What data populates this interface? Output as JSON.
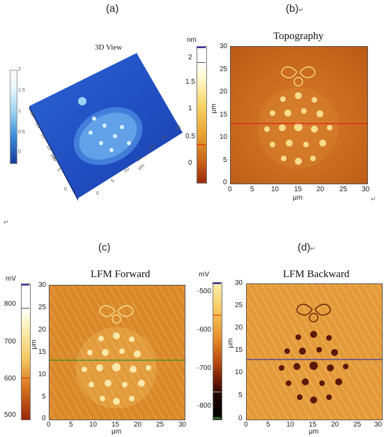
{
  "labels": {
    "a": "(a)",
    "b": "(b)",
    "c": "(c)",
    "d": "(d)"
  },
  "return_mark": "↵",
  "panel_a": {
    "title": "3D View",
    "colorbar_ticks": [
      "2",
      "1.5",
      "1",
      "0.5",
      "0"
    ],
    "axis_ticks_side": [
      "30",
      "25",
      "20",
      "15",
      "10",
      "5",
      "0"
    ],
    "axis_ticks_front": [
      "30",
      "25",
      "20",
      "15",
      "10",
      "5",
      "0"
    ],
    "unit": "μm"
  },
  "panel_b": {
    "title": "Topography",
    "colorbar_unit": "nm",
    "colorbar_ticks": [
      "2",
      "1.5",
      "1",
      "0.5",
      "0"
    ],
    "y_ticks": [
      "30",
      "25",
      "20",
      "15",
      "10",
      "5",
      "0"
    ],
    "x_ticks": [
      "0",
      "5",
      "10",
      "15",
      "20",
      "25",
      "30"
    ],
    "ylabel": "μm",
    "xlabel": "μm"
  },
  "panel_c": {
    "title": "LFM Forward",
    "colorbar_unit": "mV",
    "colorbar_ticks": [
      "800",
      "700",
      "600",
      "500"
    ],
    "y_ticks": [
      "30",
      "25",
      "20",
      "15",
      "10",
      "5",
      "0"
    ],
    "x_ticks": [
      "0",
      "5",
      "10",
      "15",
      "20",
      "25",
      "30"
    ],
    "ylabel": "μm",
    "xlabel": "μm"
  },
  "panel_d": {
    "title": "LFM Backward",
    "colorbar_unit": "mV",
    "colorbar_ticks": [
      "-500",
      "-600",
      "-700",
      "-800"
    ],
    "y_ticks": [
      "30",
      "25",
      "20",
      "15",
      "10",
      "5",
      "0"
    ],
    "x_ticks": [
      "0",
      "5",
      "10",
      "15",
      "20",
      "25",
      "30"
    ],
    "ylabel": "μm",
    "xlabel": "μm"
  },
  "colors": {
    "topo_bg": "#c8691e",
    "lfm_fwd_bg": "#d9882a",
    "lfm_bwd_bg": "#e49a3a",
    "blue_surface": "#1f4fc8",
    "profile_red": "#e0201a",
    "profile_green": "#3a8a2a",
    "profile_blue": "#3a3aa8"
  }
}
